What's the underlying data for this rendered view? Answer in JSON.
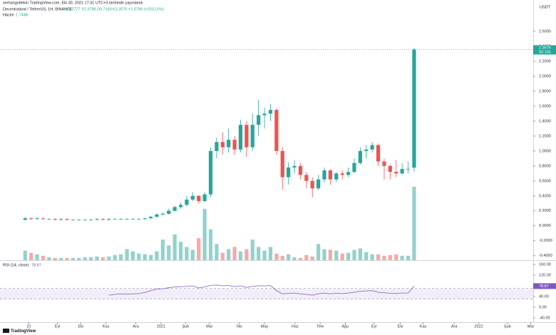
{
  "chart_data": {
    "type": "candlestick",
    "published": "serhanguttekin TradingView.com, Eki 30, 2021 17:31 UTC+3 tarihinde yayınlandı",
    "title": "Decentraland / TetherUS, 1H, BINANCE",
    "ohlc_texts": [
      "A0.7777",
      "Y2.3798",
      "D0.7183",
      "K2.3576"
    ],
    "change_text": "+1.5798 (+203.11%)",
    "volume_title": "Hacim",
    "volume_text": "1.744B",
    "currency": "USDT",
    "last_price_label": "2.3576",
    "countdown": "5d 10s",
    "up_color": "#26a69a",
    "down_color": "#ef5350",
    "xlim": [
      -4.2,
      84.9
    ],
    "xticks": [
      {
        "value": 0.6,
        "label": "10"
      },
      {
        "value": 5.4,
        "label": "Eyl"
      },
      {
        "value": 9.3,
        "label": "Eki"
      },
      {
        "value": 13.5,
        "label": "Kas"
      },
      {
        "value": 18.5,
        "label": "Ara"
      },
      {
        "value": 22.7,
        "label": "2021"
      },
      {
        "value": 26.8,
        "label": "Şub"
      },
      {
        "value": 30.8,
        "label": "Mar"
      },
      {
        "value": 35.8,
        "label": "Nis"
      },
      {
        "value": 40,
        "label": "May"
      },
      {
        "value": 45.1,
        "label": "Haz"
      },
      {
        "value": 49.3,
        "label": "Tem"
      },
      {
        "value": 53.5,
        "label": "Ağu"
      },
      {
        "value": 58.3,
        "label": "Eyl"
      },
      {
        "value": 62.7,
        "label": "Eki"
      },
      {
        "value": 66.5,
        "label": "Kas"
      },
      {
        "value": 71.7,
        "label": "Ara"
      },
      {
        "value": 75.8,
        "label": "2022"
      },
      {
        "value": 80.6,
        "label": "Şub"
      },
      {
        "value": 84.5,
        "label": "Mar"
      }
    ],
    "ylim": [
      -0.46,
      3.02
    ],
    "yticks": [
      {
        "value": 2.6,
        "label": "2.6000"
      },
      {
        "value": 2.4,
        "label": "2.4000"
      },
      {
        "value": 2.2,
        "label": "2.2000"
      },
      {
        "value": 2.0,
        "label": "2.0000"
      },
      {
        "value": 1.8,
        "label": "1.8000"
      },
      {
        "value": 1.6,
        "label": "1.6000"
      },
      {
        "value": 1.4,
        "label": "1.4000"
      },
      {
        "value": 1.2,
        "label": "1.2000"
      },
      {
        "value": 1.0,
        "label": "1.0000"
      },
      {
        "value": 0.8,
        "label": "0.8000"
      },
      {
        "value": 0.6,
        "label": "0.6000"
      },
      {
        "value": 0.4,
        "label": "0.4000"
      },
      {
        "value": 0.2,
        "label": "0.2000"
      },
      {
        "value": 0,
        "label": "0.0000"
      },
      {
        "value": -0.2,
        "label": "-0.2000"
      },
      {
        "value": -0.4,
        "label": "-0.4000"
      }
    ],
    "open": [
      0.08,
      0.1,
      0.09,
      0.1,
      0.09,
      0.09,
      0.08,
      0.09,
      0.08,
      0.08,
      0.08,
      0.08,
      0.08,
      0.09,
      0.08,
      0.09,
      0.09,
      0.09,
      0.09,
      0.09,
      0.09,
      0.1,
      0.12,
      0.15,
      0.16,
      0.2,
      0.25,
      0.28,
      0.35,
      0.4,
      0.33,
      0.42,
      1.0,
      1.12,
      1.05,
      1.15,
      1.02,
      1.35,
      1.05,
      1.35,
      1.48,
      1.5,
      1.55,
      1.0,
      0.65,
      0.78,
      0.8,
      0.68,
      0.6,
      0.5,
      0.62,
      0.74,
      0.62,
      0.7,
      0.68,
      0.72,
      0.84,
      1.0,
      1.02,
      1.08,
      0.86,
      0.8,
      0.72,
      0.7,
      0.76,
      0.7777
    ],
    "high": [
      0.12,
      0.11,
      0.11,
      0.11,
      0.1,
      0.1,
      0.1,
      0.1,
      0.09,
      0.09,
      0.09,
      0.09,
      0.1,
      0.1,
      0.1,
      0.1,
      0.1,
      0.1,
      0.1,
      0.1,
      0.11,
      0.13,
      0.17,
      0.18,
      0.23,
      0.27,
      0.31,
      0.4,
      0.45,
      0.41,
      0.45,
      1.05,
      1.18,
      1.25,
      1.3,
      1.2,
      1.42,
      1.4,
      1.5,
      1.68,
      1.58,
      1.63,
      1.57,
      1.05,
      0.85,
      0.88,
      0.84,
      0.72,
      0.65,
      0.68,
      0.78,
      0.76,
      0.72,
      0.74,
      0.78,
      0.9,
      1.05,
      1.08,
      1.12,
      1.1,
      0.9,
      0.82,
      0.88,
      0.84,
      0.86,
      2.3798
    ],
    "low": [
      0.07,
      0.08,
      0.08,
      0.08,
      0.08,
      0.07,
      0.07,
      0.07,
      0.07,
      0.07,
      0.07,
      0.07,
      0.07,
      0.07,
      0.07,
      0.08,
      0.08,
      0.08,
      0.08,
      0.08,
      0.08,
      0.09,
      0.11,
      0.14,
      0.15,
      0.19,
      0.23,
      0.26,
      0.33,
      0.3,
      0.32,
      0.38,
      0.9,
      0.95,
      0.98,
      0.95,
      0.98,
      0.92,
      1.0,
      1.2,
      1.3,
      1.4,
      0.95,
      0.48,
      0.55,
      0.7,
      0.62,
      0.5,
      0.38,
      0.48,
      0.58,
      0.55,
      0.58,
      0.62,
      0.65,
      0.7,
      0.82,
      0.9,
      0.98,
      0.8,
      0.62,
      0.62,
      0.65,
      0.68,
      0.7,
      0.7183
    ],
    "close": [
      0.1,
      0.09,
      0.1,
      0.09,
      0.09,
      0.08,
      0.09,
      0.08,
      0.08,
      0.08,
      0.08,
      0.08,
      0.09,
      0.08,
      0.09,
      0.09,
      0.09,
      0.09,
      0.09,
      0.09,
      0.1,
      0.12,
      0.15,
      0.16,
      0.2,
      0.25,
      0.28,
      0.35,
      0.4,
      0.33,
      0.42,
      1.0,
      1.12,
      1.05,
      1.15,
      1.02,
      1.35,
      1.05,
      1.35,
      1.48,
      1.5,
      1.55,
      1.0,
      0.65,
      0.78,
      0.8,
      0.68,
      0.6,
      0.5,
      0.62,
      0.74,
      0.62,
      0.7,
      0.68,
      0.72,
      0.84,
      1.0,
      1.02,
      1.08,
      0.86,
      0.8,
      0.72,
      0.7,
      0.76,
      0.76,
      2.3576
    ],
    "volume": [
      13,
      10,
      8,
      6,
      4,
      3,
      3,
      3,
      3,
      3,
      4,
      4,
      5,
      4,
      5,
      7,
      8,
      15,
      12,
      9,
      8,
      7,
      12,
      28,
      20,
      35,
      25,
      18,
      14,
      30,
      70,
      42,
      22,
      10,
      15,
      18,
      12,
      15,
      28,
      18,
      13,
      18,
      9,
      6,
      8,
      4,
      3,
      7,
      5,
      22,
      15,
      14,
      13,
      9,
      10,
      14,
      16,
      11,
      8,
      8,
      6,
      7,
      8,
      6,
      6,
      100
    ],
    "volume_lim": [
      0,
      100
    ],
    "rsi_title": "RSI (14, close)",
    "rsi_value_label": "78.87",
    "rsi_color": "#7e57c2",
    "rsi": [
      null,
      null,
      null,
      null,
      null,
      null,
      null,
      null,
      null,
      null,
      null,
      null,
      null,
      null,
      45,
      48,
      50,
      49,
      50,
      51,
      55,
      62,
      68,
      69,
      73,
      76,
      77,
      78,
      80,
      72,
      76,
      82,
      83,
      80,
      81,
      77,
      80,
      74,
      78,
      80,
      80,
      81,
      62,
      50,
      52,
      53,
      50,
      48,
      45,
      50,
      53,
      50,
      52,
      51,
      53,
      56,
      60,
      61,
      62,
      56,
      54,
      52,
      51,
      53,
      53,
      78.87
    ],
    "rsi_ylim": [
      -56,
      176
    ],
    "rsi_yticks": [
      {
        "value": 160,
        "label": "160.00"
      },
      {
        "value": 120,
        "label": "120.00"
      },
      {
        "value": 40,
        "label": "40.00"
      },
      {
        "value": 0,
        "label": "0.00"
      },
      {
        "value": -40,
        "label": "-40.00"
      }
    ],
    "rsi_band": [
      30,
      70
    ]
  }
}
